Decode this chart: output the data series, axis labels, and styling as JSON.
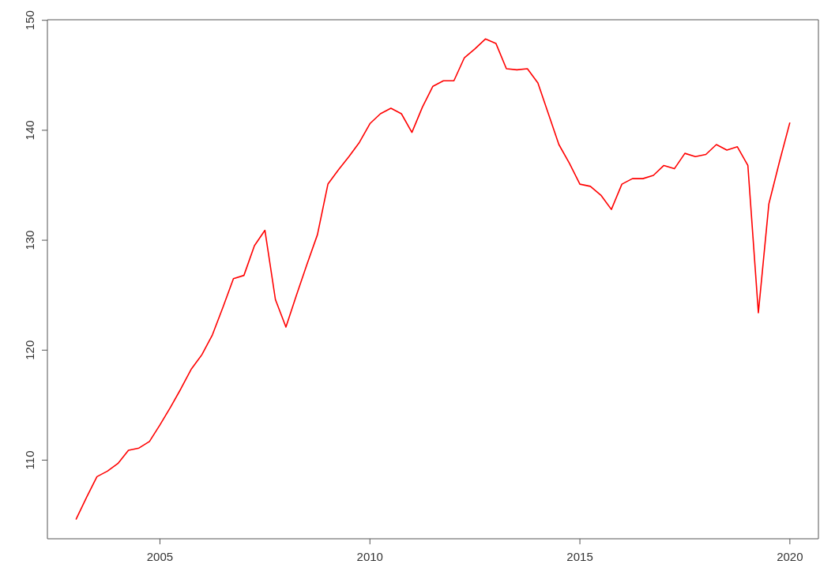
{
  "chart_data": {
    "type": "line",
    "x": [
      2003,
      2003.25,
      2003.5,
      2003.75,
      2004,
      2004.25,
      2004.5,
      2004.75,
      2005,
      2005.25,
      2005.5,
      2005.75,
      2006,
      2006.25,
      2006.5,
      2006.75,
      2007,
      2007.25,
      2007.5,
      2007.75,
      2008,
      2008.25,
      2008.5,
      2008.75,
      2009,
      2009.25,
      2009.5,
      2009.75,
      2010,
      2010.25,
      2010.5,
      2010.75,
      2011,
      2011.25,
      2011.5,
      2011.75,
      2012,
      2012.25,
      2012.5,
      2012.75,
      2013,
      2013.25,
      2013.5,
      2013.75,
      2014,
      2014.25,
      2014.5,
      2014.75,
      2015,
      2015.25,
      2015.5,
      2015.75,
      2016,
      2016.25,
      2016.5,
      2016.75,
      2017,
      2017.25,
      2017.5,
      2017.75,
      2018,
      2018.25,
      2018.5,
      2018.75,
      2019,
      2019.25,
      2019.5,
      2019.75,
      2020
    ],
    "series": [
      {
        "color": "#ff0000",
        "values": [
          104.6,
          106.6,
          108.5,
          109.0,
          109.7,
          110.9,
          111.1,
          111.7,
          113.2,
          114.8,
          116.5,
          118.3,
          119.6,
          121.4,
          123.9,
          126.5,
          126.8,
          129.5,
          130.9,
          124.6,
          122.1,
          125.0,
          127.8,
          130.5,
          135.1,
          136.4,
          137.6,
          138.9,
          140.6,
          141.5,
          142.0,
          141.5,
          139.8,
          142.1,
          144.0,
          144.5,
          144.5,
          146.6,
          147.4,
          148.3,
          147.9,
          145.6,
          145.5,
          145.6,
          144.3,
          141.5,
          138.7,
          137.0,
          135.1,
          134.9,
          134.1,
          132.8,
          135.1,
          135.6,
          135.6,
          135.9,
          136.8,
          136.5,
          137.9,
          137.6,
          137.8,
          138.7,
          138.2,
          138.5,
          136.8,
          123.4,
          133.3,
          137.1,
          140.7
        ]
      }
    ],
    "xlim": [
      2002.32,
      2020.68
    ],
    "xticks": [
      2005,
      2010,
      2015,
      2020
    ],
    "ylim": [
      102.85,
      150.05
    ],
    "yticks": [
      110,
      120,
      130,
      140,
      150
    ],
    "grid": false,
    "marker": "none",
    "line_style": "solid"
  }
}
